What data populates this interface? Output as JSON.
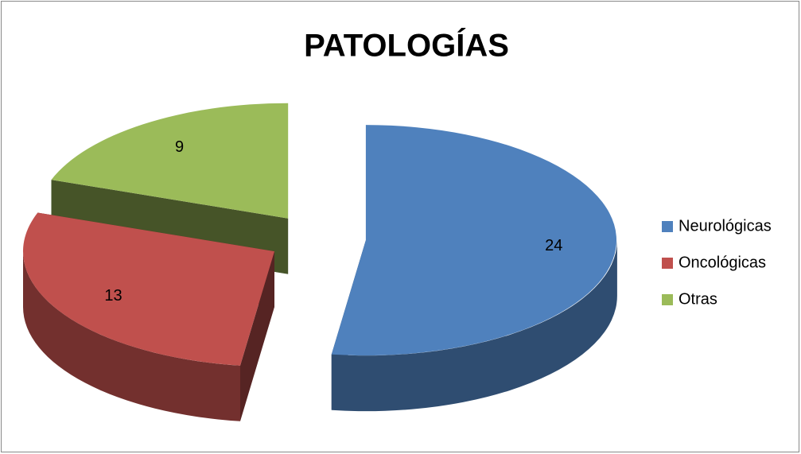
{
  "chart_data": {
    "type": "pie",
    "title": "PATOLOGÍAS",
    "categories": [
      "Neurológicas",
      "Oncológicas",
      "Otras"
    ],
    "values": [
      24,
      13,
      9
    ],
    "colors": [
      "#4f81bd",
      "#c0504d",
      "#9bbb59"
    ],
    "legend": "right"
  }
}
